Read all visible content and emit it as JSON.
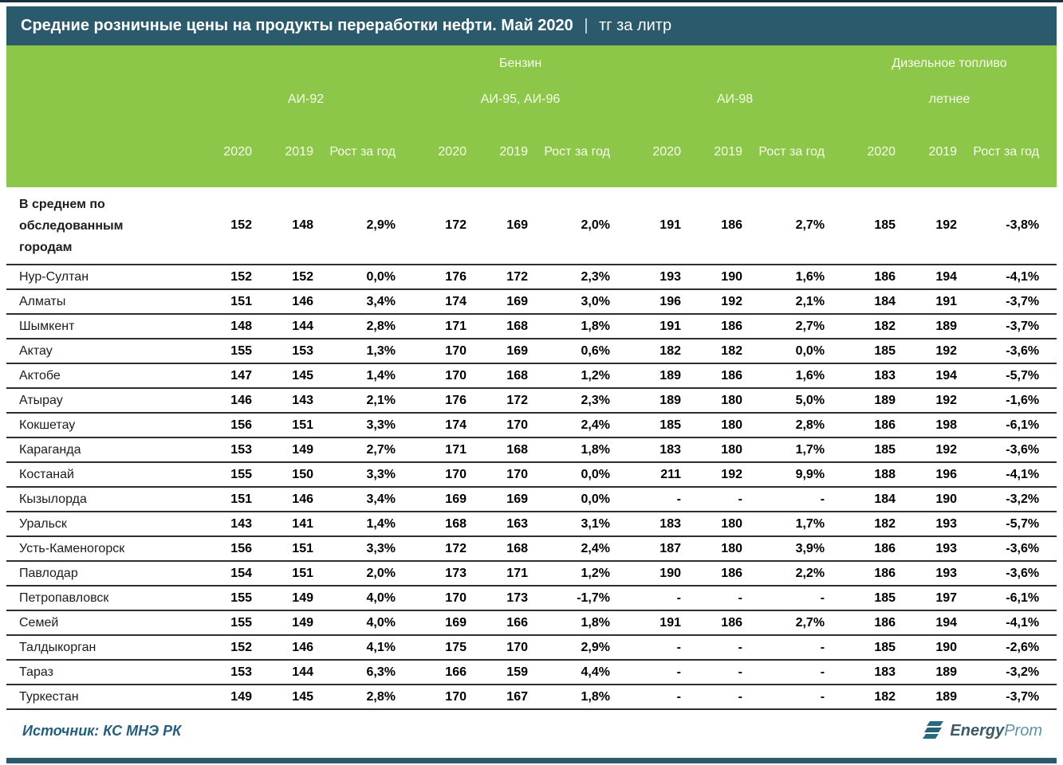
{
  "title": {
    "main": "Средние розничные цены на продукты переработки нефти. Май 2020",
    "separator": "|",
    "unit": "тг за литр"
  },
  "header": {
    "fuel_groups": [
      {
        "label": "Бензин"
      },
      {
        "label": "Дизельное топливо"
      }
    ],
    "octane_groups": [
      {
        "label": "АИ-92"
      },
      {
        "label": "АИ-95, АИ-96"
      },
      {
        "label": "АИ-98"
      },
      {
        "label": "летнее"
      }
    ],
    "year_cols": [
      "2020",
      "2019",
      "Рост за год"
    ]
  },
  "chart_data": {
    "type": "table",
    "title": "Средние розничные цены на продукты переработки нефти. Май 2020 | тг за литр",
    "column_groups": [
      "Бензин АИ-92",
      "Бензин АИ-95, АИ-96",
      "Бензин АИ-98",
      "Дизельное топливо летнее"
    ],
    "columns_per_group": [
      "2020",
      "2019",
      "Рост за год"
    ],
    "rows": [
      {
        "label": "В среднем по обследованным городам",
        "emphasis": true,
        "values": [
          152,
          148,
          "2,9%",
          172,
          169,
          "2,0%",
          191,
          186,
          "2,7%",
          185,
          192,
          "-3,8%"
        ]
      },
      {
        "label": "Нур-Султан",
        "values": [
          152,
          152,
          "0,0%",
          176,
          172,
          "2,3%",
          193,
          190,
          "1,6%",
          186,
          194,
          "-4,1%"
        ]
      },
      {
        "label": "Алматы",
        "values": [
          151,
          146,
          "3,4%",
          174,
          169,
          "3,0%",
          196,
          192,
          "2,1%",
          184,
          191,
          "-3,7%"
        ]
      },
      {
        "label": "Шымкент",
        "values": [
          148,
          144,
          "2,8%",
          171,
          168,
          "1,8%",
          191,
          186,
          "2,7%",
          182,
          189,
          "-3,7%"
        ]
      },
      {
        "label": "Актау",
        "values": [
          155,
          153,
          "1,3%",
          170,
          169,
          "0,6%",
          182,
          182,
          "0,0%",
          185,
          192,
          "-3,6%"
        ]
      },
      {
        "label": "Актобе",
        "values": [
          147,
          145,
          "1,4%",
          170,
          168,
          "1,2%",
          189,
          186,
          "1,6%",
          183,
          194,
          "-5,7%"
        ]
      },
      {
        "label": "Атырау",
        "values": [
          146,
          143,
          "2,1%",
          176,
          172,
          "2,3%",
          189,
          180,
          "5,0%",
          189,
          192,
          "-1,6%"
        ]
      },
      {
        "label": "Кокшетау",
        "values": [
          156,
          151,
          "3,3%",
          174,
          170,
          "2,4%",
          185,
          180,
          "2,8%",
          186,
          198,
          "-6,1%"
        ]
      },
      {
        "label": "Караганда",
        "values": [
          153,
          149,
          "2,7%",
          171,
          168,
          "1,8%",
          183,
          180,
          "1,7%",
          185,
          192,
          "-3,6%"
        ]
      },
      {
        "label": "Костанай",
        "values": [
          155,
          150,
          "3,3%",
          170,
          170,
          "0,0%",
          211,
          192,
          "9,9%",
          188,
          196,
          "-4,1%"
        ]
      },
      {
        "label": "Кызылорда",
        "values": [
          151,
          146,
          "3,4%",
          169,
          169,
          "0,0%",
          "-",
          "-",
          "-",
          184,
          190,
          "-3,2%"
        ]
      },
      {
        "label": "Уральск",
        "values": [
          143,
          141,
          "1,4%",
          168,
          163,
          "3,1%",
          183,
          180,
          "1,7%",
          182,
          193,
          "-5,7%"
        ]
      },
      {
        "label": "Усть-Каменогорск",
        "values": [
          156,
          151,
          "3,3%",
          172,
          168,
          "2,4%",
          187,
          180,
          "3,9%",
          186,
          193,
          "-3,6%"
        ]
      },
      {
        "label": "Павлодар",
        "values": [
          154,
          151,
          "2,0%",
          173,
          171,
          "1,2%",
          190,
          186,
          "2,2%",
          186,
          193,
          "-3,6%"
        ]
      },
      {
        "label": "Петропавловск",
        "values": [
          155,
          149,
          "4,0%",
          170,
          173,
          "-1,7%",
          "-",
          "-",
          "-",
          185,
          197,
          "-6,1%"
        ]
      },
      {
        "label": "Семей",
        "values": [
          155,
          149,
          "4,0%",
          169,
          166,
          "1,8%",
          191,
          186,
          "2,7%",
          186,
          194,
          "-4,1%"
        ]
      },
      {
        "label": "Талдыкорган",
        "values": [
          152,
          146,
          "4,1%",
          175,
          170,
          "2,9%",
          "-",
          "-",
          "-",
          185,
          190,
          "-2,6%"
        ]
      },
      {
        "label": "Тараз",
        "values": [
          153,
          144,
          "6,3%",
          166,
          159,
          "4,4%",
          "-",
          "-",
          "-",
          183,
          189,
          "-3,2%"
        ]
      },
      {
        "label": "Туркестан",
        "values": [
          149,
          145,
          "2,8%",
          170,
          167,
          "1,8%",
          "-",
          "-",
          "-",
          182,
          189,
          "-3,7%"
        ]
      }
    ]
  },
  "footer": {
    "source": "Источник: КС МНЭ РК",
    "logo_energy": "Energy",
    "logo_prom": "Prom"
  },
  "colors": {
    "title_bg": "#2A5A6B",
    "header_bg": "#8CC74A",
    "row_border": "#2E2E2E",
    "source_text": "#245F7B",
    "logo_teal": "#266C80"
  }
}
